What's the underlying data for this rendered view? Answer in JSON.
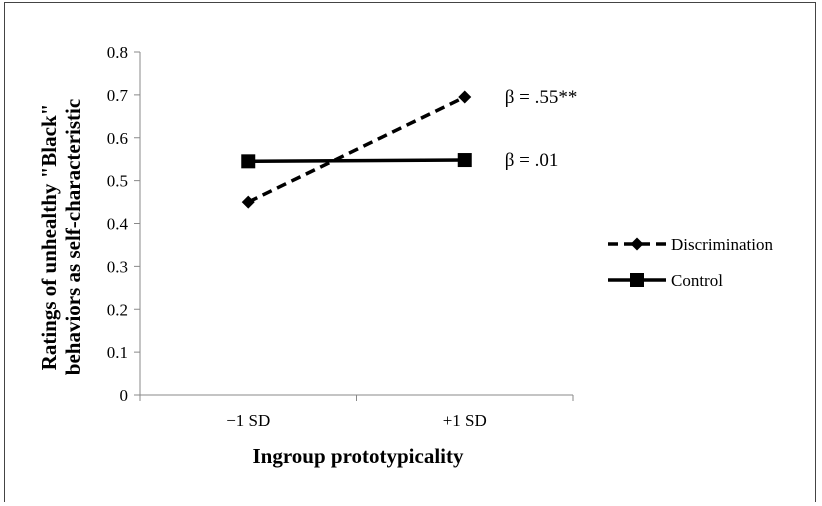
{
  "chart_data": {
    "type": "line",
    "title": "",
    "xlabel": "Ingroup prototypicality",
    "ylabel_lines": [
      "Ratings of unhealthy \"Black\"",
      "behaviors as self-characteristic"
    ],
    "categories": [
      "−1 SD",
      "+1 SD"
    ],
    "ylim": [
      0,
      0.8
    ],
    "yticks": [
      0,
      0.1,
      0.2,
      0.3,
      0.4,
      0.5,
      0.6,
      0.7,
      0.8
    ],
    "ytick_labels": [
      "0",
      "0.1",
      "0.2",
      "0.3",
      "0.4",
      "0.5",
      "0.6",
      "0.7",
      "0.8"
    ],
    "grid": false,
    "legend_position": "right",
    "series": [
      {
        "name": "Discrimination",
        "values": [
          0.45,
          0.695
        ],
        "style": "dashed",
        "marker": "diamond",
        "annotation": "β = .55**"
      },
      {
        "name": "Control",
        "values": [
          0.545,
          0.548
        ],
        "style": "solid",
        "marker": "square",
        "annotation": "β = .01"
      }
    ]
  }
}
